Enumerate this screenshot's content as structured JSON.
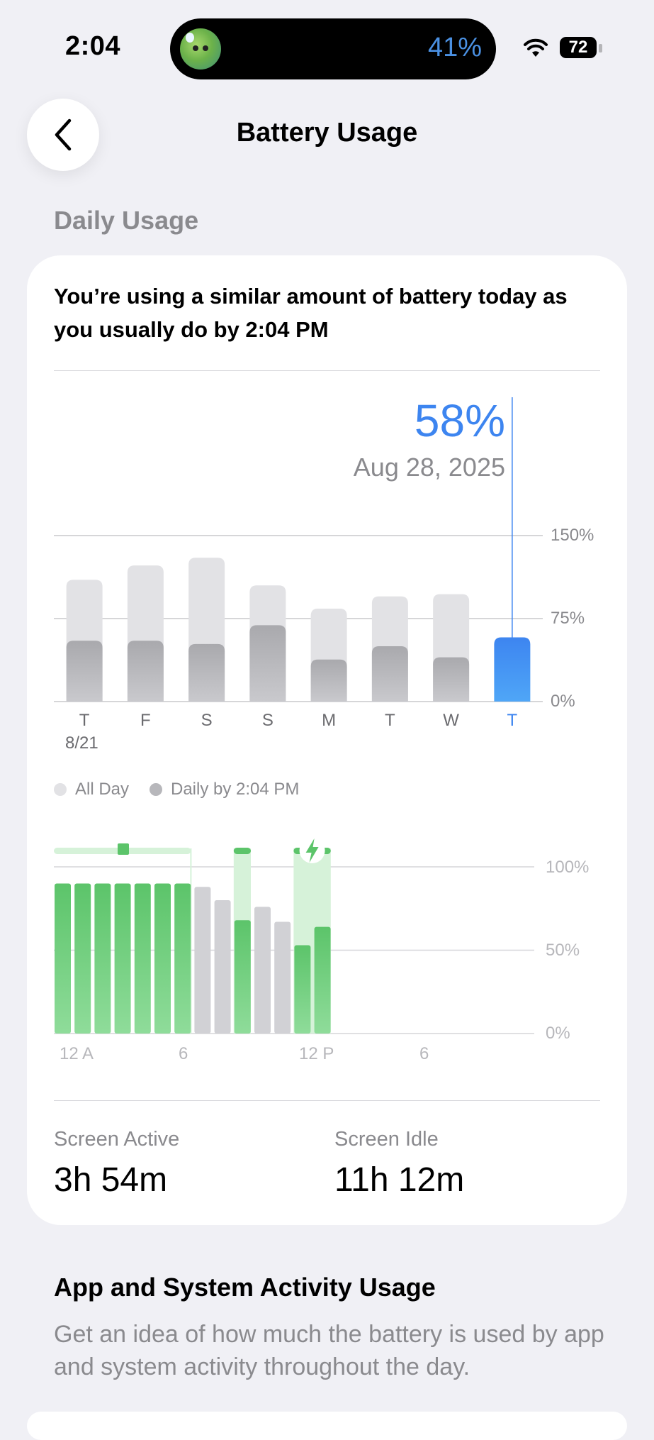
{
  "status_bar": {
    "time": "2:04",
    "island_battery": "41%",
    "battery_level": "72",
    "icons": [
      "wifi-icon",
      "battery-icon"
    ]
  },
  "nav": {
    "title": "Battery Usage",
    "back_icon": "chevron-left-icon"
  },
  "section_title": "Daily Usage",
  "headline": "You’re using a similar amount of battery today as you usually do by 2:04 PM",
  "selection": {
    "percent": "58%",
    "date": "Aug 28, 2025"
  },
  "colors": {
    "accent_blue": "#3d85f0",
    "green": "#5cc46a",
    "bar_light": "#e2e2e5",
    "bar_dark": "#b7b7bb",
    "gray_text": "#8a8a8e"
  },
  "chart_data": [
    {
      "type": "bar",
      "categories": [
        "T",
        "F",
        "S",
        "S",
        "M",
        "T",
        "W",
        "T"
      ],
      "sublabels": [
        "8/21",
        "",
        "",
        "",
        "",
        "",
        "",
        ""
      ],
      "series": [
        {
          "name": "All Day",
          "values": [
            110,
            123,
            130,
            105,
            84,
            95,
            97,
            null
          ]
        },
        {
          "name": "Daily by 2:04 PM",
          "values": [
            55,
            55,
            52,
            69,
            38,
            50,
            40,
            58
          ]
        }
      ],
      "selected_index": 7,
      "y_ticks": [
        "0%",
        "75%",
        "150%"
      ],
      "ylim": [
        0,
        150
      ]
    },
    {
      "type": "bar",
      "x_ticks": [
        "12 A",
        "6",
        "12 P",
        "6"
      ],
      "y_ticks": [
        "0%",
        "50%",
        "100%"
      ],
      "ylim": [
        0,
        100
      ],
      "hours": [
        0,
        1,
        2,
        3,
        4,
        5,
        6,
        7,
        8,
        9,
        10,
        11,
        12,
        13
      ],
      "values": [
        90,
        90,
        90,
        90,
        90,
        90,
        90,
        88,
        80,
        68,
        76,
        67,
        53,
        64
      ],
      "charging": [
        true,
        true,
        true,
        true,
        true,
        true,
        true,
        false,
        false,
        true,
        false,
        false,
        true,
        true
      ],
      "charging_icon": "bolt-icon"
    }
  ],
  "legend": {
    "all_day": "All Day",
    "daily_by": "Daily by 2:04 PM"
  },
  "stats": {
    "screen_active_label": "Screen Active",
    "screen_active_value": "3h 54m",
    "screen_idle_label": "Screen Idle",
    "screen_idle_value": "11h 12m"
  },
  "apps_section": {
    "title": "App and System Activity Usage",
    "description": "Get an idea of how much the battery is used by app and system activity throughout the day."
  }
}
